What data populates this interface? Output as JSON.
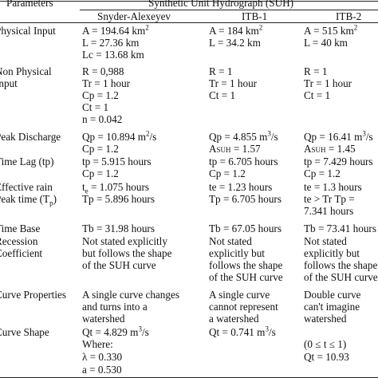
{
  "header": {
    "parameters": "Parameters",
    "suh": "Synthetic Unit Hydrograph (SUH)",
    "col1": "Snyder-Alexeyev",
    "col2": "ITB-1",
    "col3": "ITB-2"
  },
  "rows": {
    "physical": {
      "param": "Physical Input",
      "c1": [
        "A = 194.64 km",
        "L = 27.36 km",
        "Lc = 13.68 km"
      ],
      "c2": [
        "A = 184 km",
        "L = 34.2 km"
      ],
      "c3": [
        "A = 515 km",
        "L = 40 km"
      ],
      "sup": "2"
    },
    "nonphysical": {
      "param": [
        "Non Physical",
        "Input"
      ],
      "c1": [
        "R = 0,988",
        "Tr = 1 hour",
        "Cp = 1.2",
        "Ct = 1",
        "n = 0.042"
      ],
      "c2": [
        "R = 1",
        "Tr = 1 hour",
        "Ct = 1"
      ],
      "c3": [
        "R = 1",
        "Tr = 1 hour",
        "Ct = 1"
      ]
    },
    "peak": {
      "param": "Peak Discharge",
      "c1": [
        "Qp = 10.894 m",
        "/s",
        "Cp = 1.2"
      ],
      "c2": [
        "Qp = 4.855 m",
        "/s",
        "A",
        "SUH",
        " = 1.57"
      ],
      "c3": [
        "Qp = 16.41 m",
        "/s",
        "A",
        "SUH",
        " = 1.45"
      ],
      "sup": "3",
      "sup2": "2"
    },
    "timelag": {
      "param": "Time Lag (tp)",
      "c1": [
        "tp = 5.915 hours",
        "Cp = 1.2"
      ],
      "c2": [
        "tp = 6.705 hours",
        "Cp = 1.2"
      ],
      "c3": [
        "tp = 7.429 hours",
        "Cp = 1.2"
      ]
    },
    "effective": {
      "param": "Effective rain",
      "c1": [
        "t",
        "e",
        " = 1.075 hours"
      ],
      "c2": "te = 1.23 hours",
      "c3": "te = 1.3 hours"
    },
    "peaktime": {
      "param": [
        "Peak time (T",
        "p",
        ")"
      ],
      "c1": "Tp = 5.896 hours",
      "c2": "Tp = 6.705 hours",
      "c3": [
        "te > Tr Tp =",
        "7.341 hours"
      ]
    },
    "timebase": {
      "param": "Time Base",
      "c1": "Tb = 31.98 hours",
      "c2": "Tb = 67.05 hours",
      "c3": "Tb = 73.41 hours"
    },
    "recession": {
      "param": [
        "Recession",
        "Coefficient"
      ],
      "c1": [
        "Not stated explicitly",
        "but follows the shape",
        "of the SUH curve"
      ],
      "c2": [
        "Not stated",
        "explicitly but",
        "follows the shape",
        "of the SUH curve"
      ],
      "c3": [
        "Not stated",
        "explicitly but",
        "follows the shape",
        "of the SUH curve"
      ]
    },
    "curveprops": {
      "param": "Curve Properties",
      "c1": [
        "A single curve changes",
        "and turns into a",
        "watershed"
      ],
      "c2": [
        "A single curve",
        "cannot represent",
        "a watershed"
      ],
      "c3": [
        "Double curve",
        "can't imagine",
        "watershed"
      ]
    },
    "curveshape": {
      "param": "Curve Shape",
      "c1": [
        "Qt = 4.829 m",
        "/s",
        "Where:",
        "λ = 0.330",
        "a = 0.530"
      ],
      "c2": [
        "Qt = 0.741 m",
        "/s"
      ],
      "c3": [
        "(0 ≤ t ≤ 1)",
        "Qt = 10.93"
      ],
      "sup": "3"
    }
  }
}
